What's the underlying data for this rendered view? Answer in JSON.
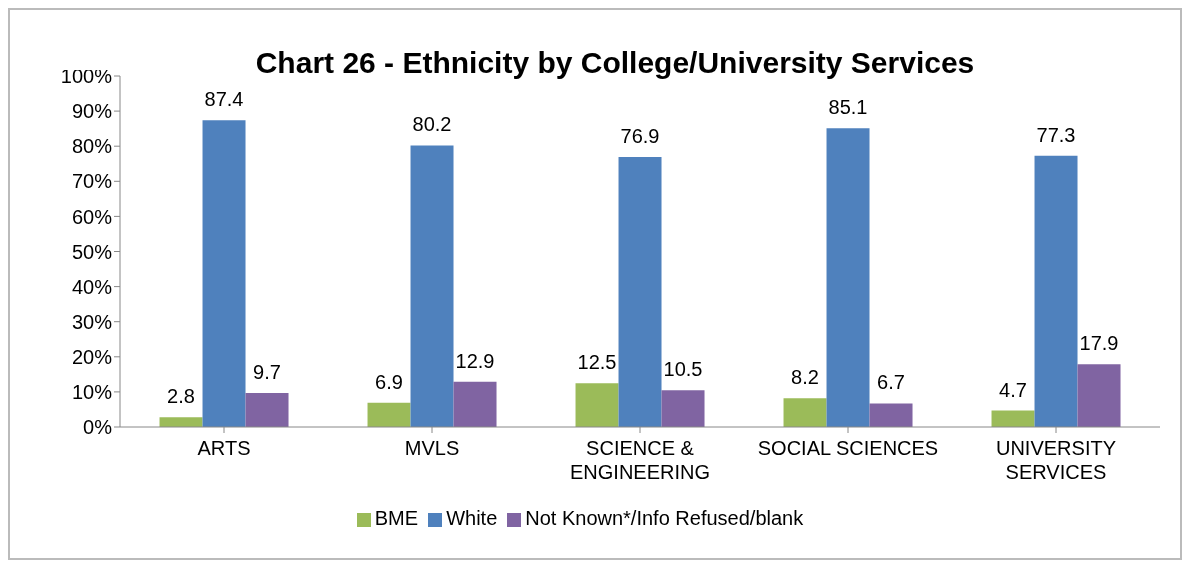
{
  "chart_data": {
    "type": "bar",
    "title": "Chart 26 - Ethnicity by College/University Services",
    "categories": [
      "ARTS",
      "MVLS",
      "SCIENCE & ENGINEERING",
      "SOCIAL SCIENCES",
      "UNIVERSITY SERVICES"
    ],
    "series": [
      {
        "name": "BME",
        "color": "#9bbb59",
        "values": [
          2.8,
          6.9,
          12.5,
          8.2,
          4.7
        ]
      },
      {
        "name": "White",
        "color": "#4f81bd",
        "values": [
          87.4,
          80.2,
          76.9,
          85.1,
          77.3
        ]
      },
      {
        "name": "Not Known*/Info Refused/blank",
        "color": "#8064a2",
        "values": [
          9.7,
          12.9,
          10.5,
          6.7,
          17.9
        ]
      }
    ],
    "ylim": [
      0,
      100
    ],
    "yticks": [
      {
        "value": 0,
        "label": "0%"
      },
      {
        "value": 10,
        "label": "10%"
      },
      {
        "value": 20,
        "label": "20%"
      },
      {
        "value": 30,
        "label": "30%"
      },
      {
        "value": 40,
        "label": "40%"
      },
      {
        "value": 50,
        "label": "50%"
      },
      {
        "value": 60,
        "label": "60%"
      },
      {
        "value": 70,
        "label": "70%"
      },
      {
        "value": 80,
        "label": "80%"
      },
      {
        "value": 90,
        "label": "90%"
      },
      {
        "value": 100,
        "label": "100%"
      }
    ],
    "grid": false,
    "legend": "bottom",
    "data_labels": true
  }
}
